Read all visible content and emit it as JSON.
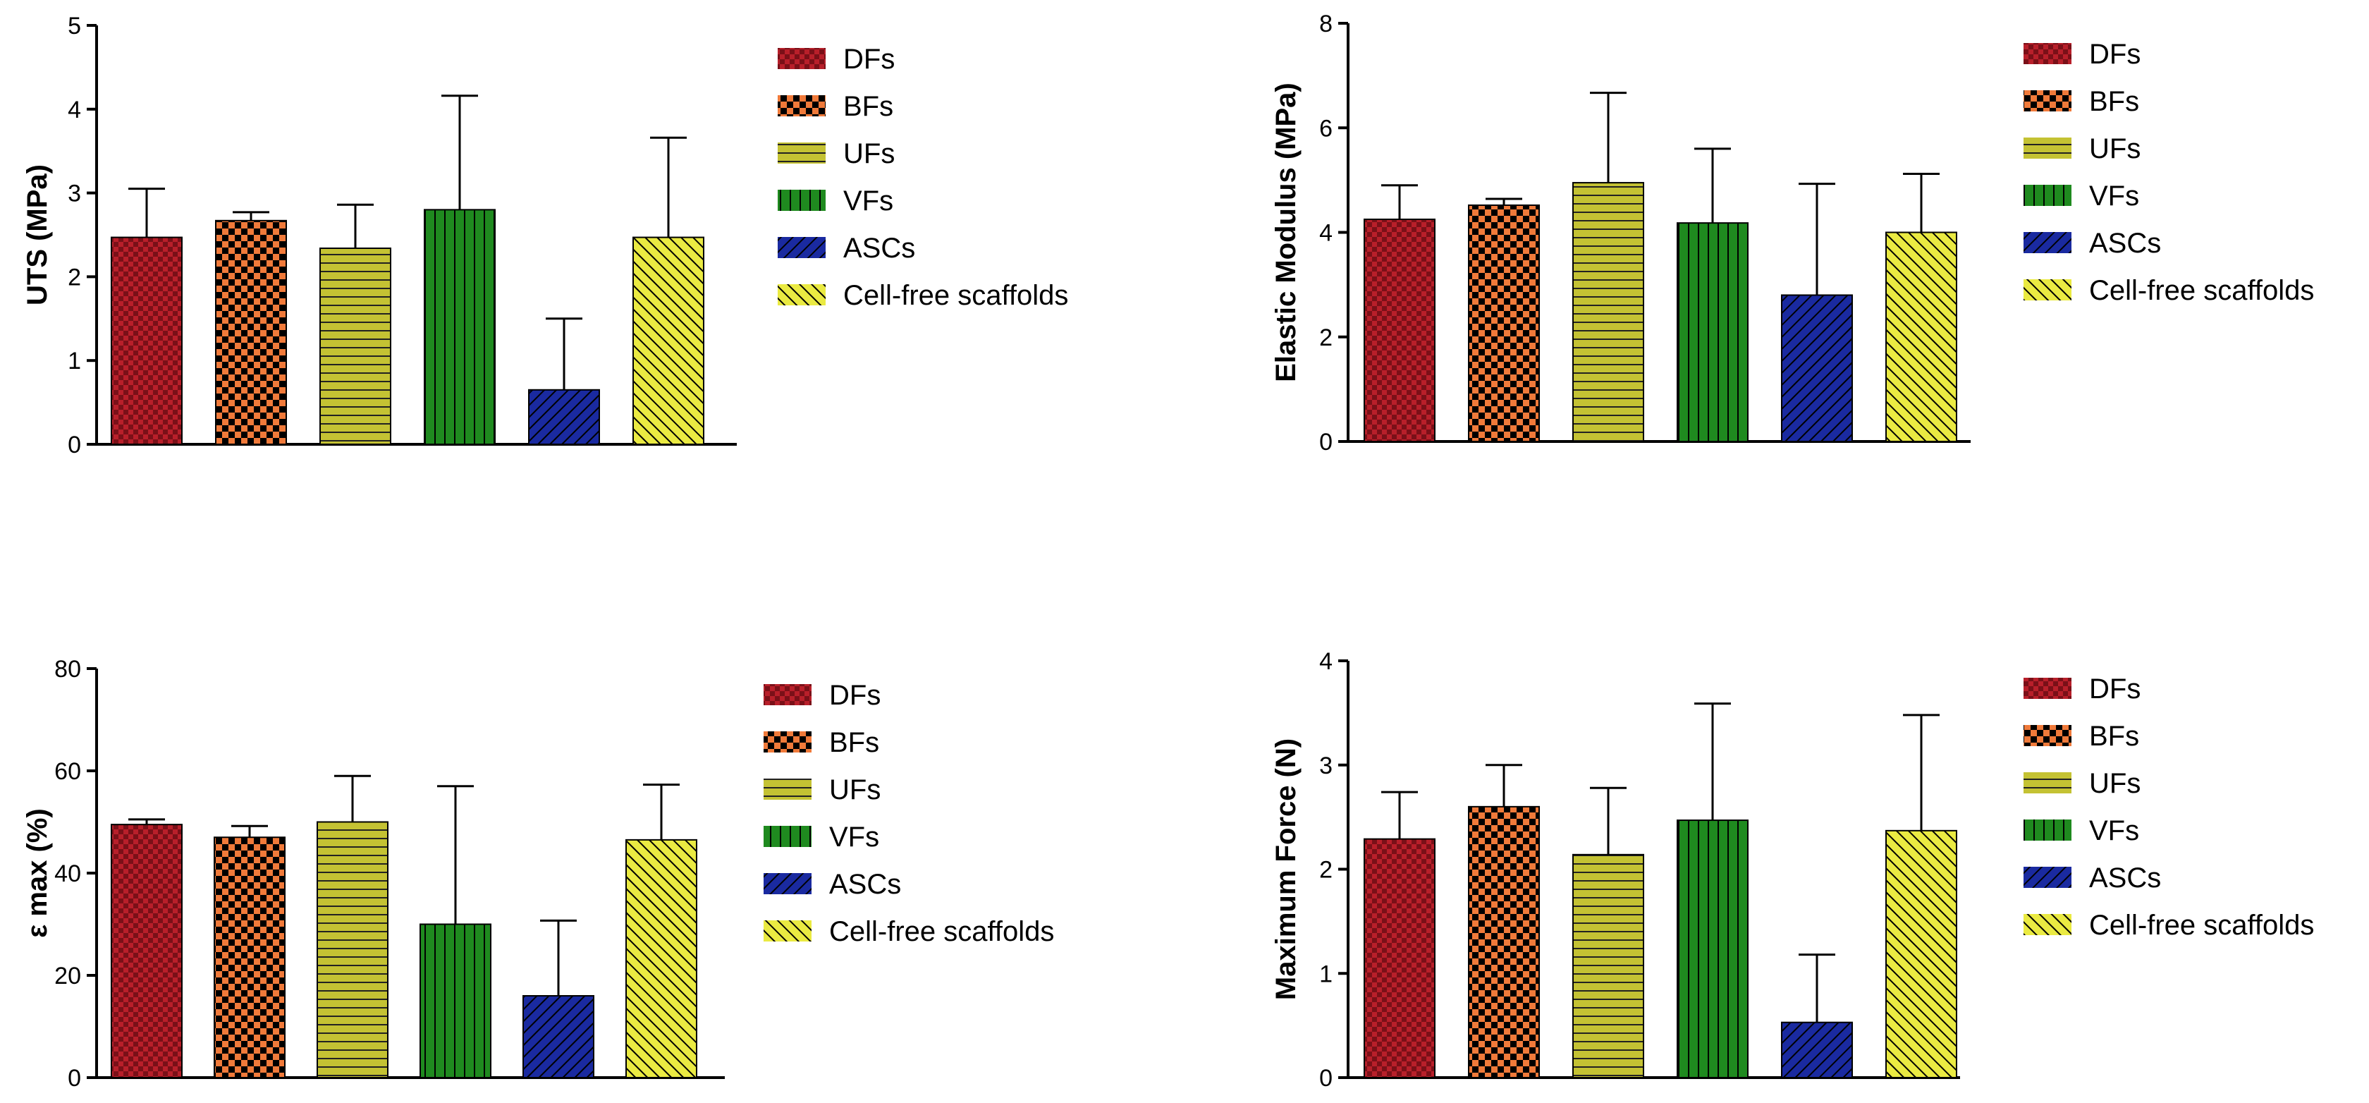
{
  "groups": [
    "DFs",
    "BFs",
    "UFs",
    "VFs",
    "ASCs",
    "Cell-free scaffolds"
  ],
  "colors": {
    "DFs": "#b81f2a",
    "BFs": "#e8642a",
    "UFs": "#c4c233",
    "VFs": "#1f8a1f",
    "ASCs": "#1a2aa0",
    "Cell-free scaffolds": "#e8e83a"
  },
  "chart_data": [
    {
      "type": "bar",
      "ylabel": "UTS (MPa)",
      "categories": [
        "DFs",
        "BFs",
        "UFs",
        "VFs",
        "ASCs",
        "Cell-free scaffolds"
      ],
      "values": [
        2.47,
        2.67,
        2.34,
        2.8,
        0.65,
        2.47
      ],
      "errors": [
        0.58,
        0.1,
        0.52,
        1.36,
        0.85,
        1.19
      ],
      "ylim": [
        0,
        5
      ],
      "ticks": [
        0,
        1,
        2,
        3,
        4,
        5
      ],
      "tick_labels": [
        "0",
        "1",
        "2",
        "3",
        "4",
        "5"
      ],
      "legend": [
        "DFs",
        "BFs",
        "UFs",
        "VFs",
        "ASCs",
        "Cell-free scaffolds"
      ]
    },
    {
      "type": "bar",
      "ylabel": "Elastic Modulus (MPa)",
      "categories": [
        "DFs",
        "BFs",
        "UFs",
        "VFs",
        "ASCs",
        "Cell-free scaffolds"
      ],
      "values": [
        4.25,
        4.52,
        4.95,
        4.18,
        2.8,
        4.0
      ],
      "errors": [
        0.65,
        0.12,
        1.72,
        1.42,
        2.13,
        1.12
      ],
      "ylim": [
        0,
        8
      ],
      "ticks": [
        0,
        2,
        4,
        6,
        8
      ],
      "tick_labels": [
        "0",
        "2",
        "4",
        "6",
        "8"
      ],
      "legend": [
        "DFs",
        "BFs",
        "UFs",
        "VFs",
        "ASCs",
        "Cell-free scaffolds"
      ]
    },
    {
      "type": "bar",
      "ylabel": "ε max (%)",
      "categories": [
        "DFs",
        "BFs",
        "UFs",
        "VFs",
        "ASCs",
        "Cell-free scaffolds"
      ],
      "values": [
        49.5,
        47.0,
        50.0,
        30.0,
        16.0,
        46.5
      ],
      "errors": [
        1.0,
        2.2,
        9.0,
        27.0,
        14.7,
        10.8
      ],
      "ylim": [
        0,
        80
      ],
      "ticks": [
        0,
        20,
        40,
        60,
        80
      ],
      "tick_labels": [
        "0",
        "20",
        "40",
        "60",
        "80"
      ],
      "legend": [
        "DFs",
        "BFs",
        "UFs",
        "VFs",
        "ASCs",
        "Cell-free scaffolds"
      ]
    },
    {
      "type": "bar",
      "ylabel": "Maximum Force (N)",
      "categories": [
        "DFs",
        "BFs",
        "UFs",
        "VFs",
        "ASCs",
        "Cell-free scaffolds"
      ],
      "values": [
        2.29,
        2.6,
        2.14,
        2.47,
        0.53,
        2.37
      ],
      "errors": [
        0.45,
        0.4,
        0.64,
        1.12,
        0.65,
        1.11
      ],
      "ylim": [
        0,
        4
      ],
      "ticks": [
        0,
        1,
        2,
        3,
        4
      ],
      "tick_labels": [
        "0",
        "1",
        "2",
        "3",
        "4"
      ],
      "legend": [
        "DFs",
        "BFs",
        "UFs",
        "VFs",
        "ASCs",
        "Cell-free scaffolds"
      ]
    }
  ]
}
